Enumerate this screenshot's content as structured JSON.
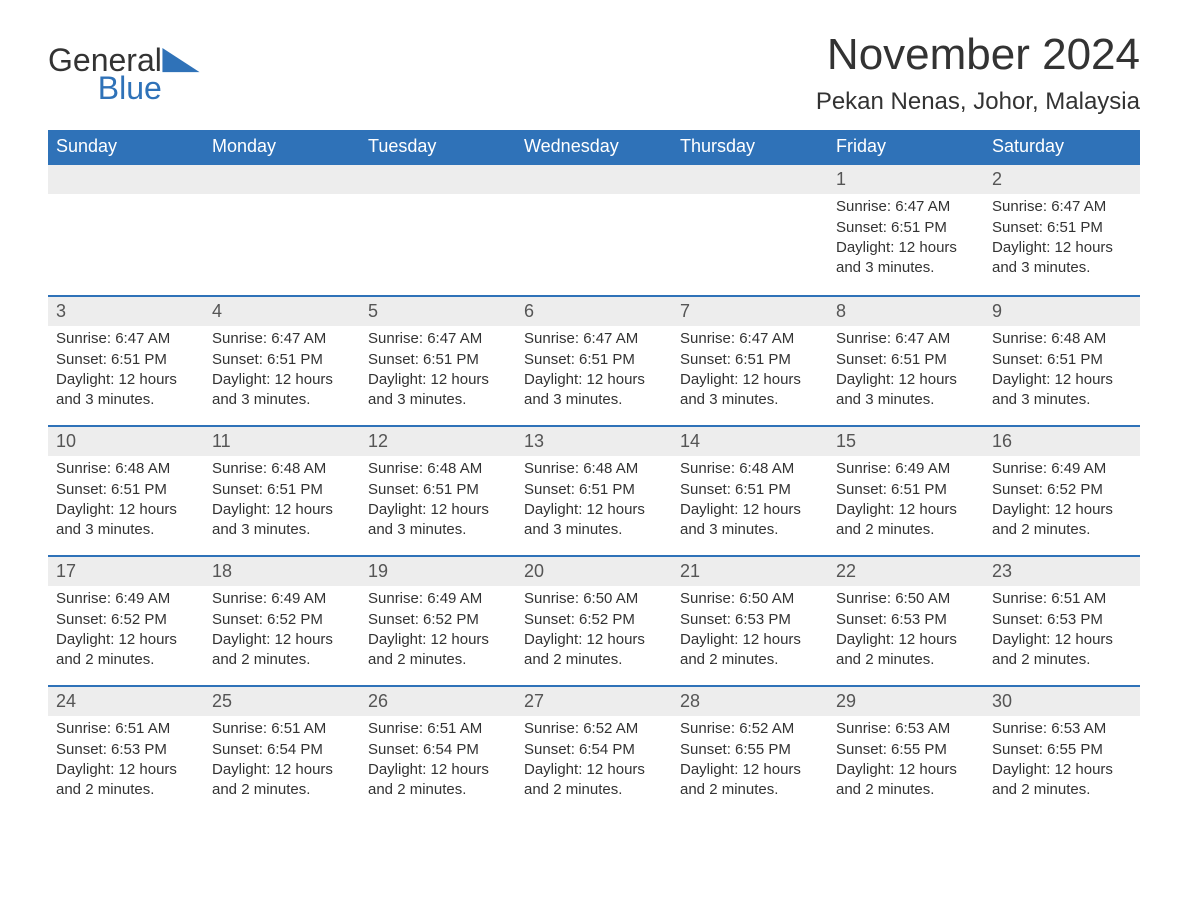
{
  "logo": {
    "text_general": "General",
    "text_blue": "Blue",
    "icon_name": "triangle-icon",
    "icon_color": "#2f72b8"
  },
  "title": "November 2024",
  "location": "Pekan Nenas, Johor, Malaysia",
  "colors": {
    "header_bg": "#2f72b8",
    "daynum_bg": "#ededed",
    "text": "#333333",
    "border": "#2f72b8",
    "background": "#ffffff"
  },
  "typography": {
    "title_fontsize": 44,
    "location_fontsize": 24,
    "dayheader_fontsize": 18,
    "daynum_fontsize": 18,
    "body_fontsize": 15,
    "font_family": "Arial"
  },
  "day_headers": [
    "Sunday",
    "Monday",
    "Tuesday",
    "Wednesday",
    "Thursday",
    "Friday",
    "Saturday"
  ],
  "weeks": [
    [
      {
        "empty": true
      },
      {
        "empty": true
      },
      {
        "empty": true
      },
      {
        "empty": true
      },
      {
        "empty": true
      },
      {
        "num": "1",
        "sunrise": "Sunrise: 6:47 AM",
        "sunset": "Sunset: 6:51 PM",
        "daylight1": "Daylight: 12 hours",
        "daylight2": "and 3 minutes."
      },
      {
        "num": "2",
        "sunrise": "Sunrise: 6:47 AM",
        "sunset": "Sunset: 6:51 PM",
        "daylight1": "Daylight: 12 hours",
        "daylight2": "and 3 minutes."
      }
    ],
    [
      {
        "num": "3",
        "sunrise": "Sunrise: 6:47 AM",
        "sunset": "Sunset: 6:51 PM",
        "daylight1": "Daylight: 12 hours",
        "daylight2": "and 3 minutes."
      },
      {
        "num": "4",
        "sunrise": "Sunrise: 6:47 AM",
        "sunset": "Sunset: 6:51 PM",
        "daylight1": "Daylight: 12 hours",
        "daylight2": "and 3 minutes."
      },
      {
        "num": "5",
        "sunrise": "Sunrise: 6:47 AM",
        "sunset": "Sunset: 6:51 PM",
        "daylight1": "Daylight: 12 hours",
        "daylight2": "and 3 minutes."
      },
      {
        "num": "6",
        "sunrise": "Sunrise: 6:47 AM",
        "sunset": "Sunset: 6:51 PM",
        "daylight1": "Daylight: 12 hours",
        "daylight2": "and 3 minutes."
      },
      {
        "num": "7",
        "sunrise": "Sunrise: 6:47 AM",
        "sunset": "Sunset: 6:51 PM",
        "daylight1": "Daylight: 12 hours",
        "daylight2": "and 3 minutes."
      },
      {
        "num": "8",
        "sunrise": "Sunrise: 6:47 AM",
        "sunset": "Sunset: 6:51 PM",
        "daylight1": "Daylight: 12 hours",
        "daylight2": "and 3 minutes."
      },
      {
        "num": "9",
        "sunrise": "Sunrise: 6:48 AM",
        "sunset": "Sunset: 6:51 PM",
        "daylight1": "Daylight: 12 hours",
        "daylight2": "and 3 minutes."
      }
    ],
    [
      {
        "num": "10",
        "sunrise": "Sunrise: 6:48 AM",
        "sunset": "Sunset: 6:51 PM",
        "daylight1": "Daylight: 12 hours",
        "daylight2": "and 3 minutes."
      },
      {
        "num": "11",
        "sunrise": "Sunrise: 6:48 AM",
        "sunset": "Sunset: 6:51 PM",
        "daylight1": "Daylight: 12 hours",
        "daylight2": "and 3 minutes."
      },
      {
        "num": "12",
        "sunrise": "Sunrise: 6:48 AM",
        "sunset": "Sunset: 6:51 PM",
        "daylight1": "Daylight: 12 hours",
        "daylight2": "and 3 minutes."
      },
      {
        "num": "13",
        "sunrise": "Sunrise: 6:48 AM",
        "sunset": "Sunset: 6:51 PM",
        "daylight1": "Daylight: 12 hours",
        "daylight2": "and 3 minutes."
      },
      {
        "num": "14",
        "sunrise": "Sunrise: 6:48 AM",
        "sunset": "Sunset: 6:51 PM",
        "daylight1": "Daylight: 12 hours",
        "daylight2": "and 3 minutes."
      },
      {
        "num": "15",
        "sunrise": "Sunrise: 6:49 AM",
        "sunset": "Sunset: 6:51 PM",
        "daylight1": "Daylight: 12 hours",
        "daylight2": "and 2 minutes."
      },
      {
        "num": "16",
        "sunrise": "Sunrise: 6:49 AM",
        "sunset": "Sunset: 6:52 PM",
        "daylight1": "Daylight: 12 hours",
        "daylight2": "and 2 minutes."
      }
    ],
    [
      {
        "num": "17",
        "sunrise": "Sunrise: 6:49 AM",
        "sunset": "Sunset: 6:52 PM",
        "daylight1": "Daylight: 12 hours",
        "daylight2": "and 2 minutes."
      },
      {
        "num": "18",
        "sunrise": "Sunrise: 6:49 AM",
        "sunset": "Sunset: 6:52 PM",
        "daylight1": "Daylight: 12 hours",
        "daylight2": "and 2 minutes."
      },
      {
        "num": "19",
        "sunrise": "Sunrise: 6:49 AM",
        "sunset": "Sunset: 6:52 PM",
        "daylight1": "Daylight: 12 hours",
        "daylight2": "and 2 minutes."
      },
      {
        "num": "20",
        "sunrise": "Sunrise: 6:50 AM",
        "sunset": "Sunset: 6:52 PM",
        "daylight1": "Daylight: 12 hours",
        "daylight2": "and 2 minutes."
      },
      {
        "num": "21",
        "sunrise": "Sunrise: 6:50 AM",
        "sunset": "Sunset: 6:53 PM",
        "daylight1": "Daylight: 12 hours",
        "daylight2": "and 2 minutes."
      },
      {
        "num": "22",
        "sunrise": "Sunrise: 6:50 AM",
        "sunset": "Sunset: 6:53 PM",
        "daylight1": "Daylight: 12 hours",
        "daylight2": "and 2 minutes."
      },
      {
        "num": "23",
        "sunrise": "Sunrise: 6:51 AM",
        "sunset": "Sunset: 6:53 PM",
        "daylight1": "Daylight: 12 hours",
        "daylight2": "and 2 minutes."
      }
    ],
    [
      {
        "num": "24",
        "sunrise": "Sunrise: 6:51 AM",
        "sunset": "Sunset: 6:53 PM",
        "daylight1": "Daylight: 12 hours",
        "daylight2": "and 2 minutes."
      },
      {
        "num": "25",
        "sunrise": "Sunrise: 6:51 AM",
        "sunset": "Sunset: 6:54 PM",
        "daylight1": "Daylight: 12 hours",
        "daylight2": "and 2 minutes."
      },
      {
        "num": "26",
        "sunrise": "Sunrise: 6:51 AM",
        "sunset": "Sunset: 6:54 PM",
        "daylight1": "Daylight: 12 hours",
        "daylight2": "and 2 minutes."
      },
      {
        "num": "27",
        "sunrise": "Sunrise: 6:52 AM",
        "sunset": "Sunset: 6:54 PM",
        "daylight1": "Daylight: 12 hours",
        "daylight2": "and 2 minutes."
      },
      {
        "num": "28",
        "sunrise": "Sunrise: 6:52 AM",
        "sunset": "Sunset: 6:55 PM",
        "daylight1": "Daylight: 12 hours",
        "daylight2": "and 2 minutes."
      },
      {
        "num": "29",
        "sunrise": "Sunrise: 6:53 AM",
        "sunset": "Sunset: 6:55 PM",
        "daylight1": "Daylight: 12 hours",
        "daylight2": "and 2 minutes."
      },
      {
        "num": "30",
        "sunrise": "Sunrise: 6:53 AM",
        "sunset": "Sunset: 6:55 PM",
        "daylight1": "Daylight: 12 hours",
        "daylight2": "and 2 minutes."
      }
    ]
  ]
}
